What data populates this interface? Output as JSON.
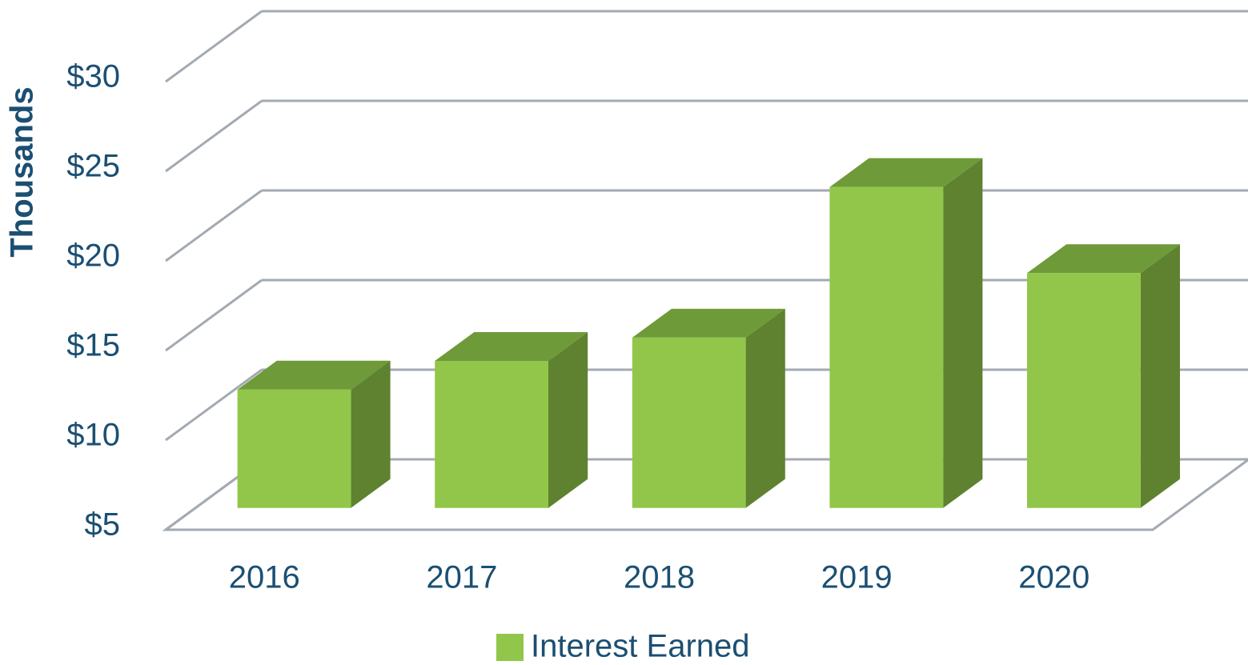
{
  "chart_data": {
    "type": "bar3d",
    "y_axis_label": "Thousands",
    "categories": [
      "2016",
      "2017",
      "2018",
      "2019",
      "2020"
    ],
    "series": [
      {
        "name": "Interest Earned",
        "color": "#92c64a",
        "values": [
          11.6,
          13.2,
          14.5,
          22.9,
          18.1
        ]
      }
    ],
    "ylim": [
      5,
      30
    ],
    "yticks": [
      {
        "value": 5,
        "label": "$5"
      },
      {
        "value": 10,
        "label": "$10"
      },
      {
        "value": 15,
        "label": "$15"
      },
      {
        "value": 20,
        "label": "$20"
      },
      {
        "value": 25,
        "label": "$25"
      },
      {
        "value": 30,
        "label": "$30"
      }
    ],
    "grid": true,
    "legend": "bottom"
  }
}
